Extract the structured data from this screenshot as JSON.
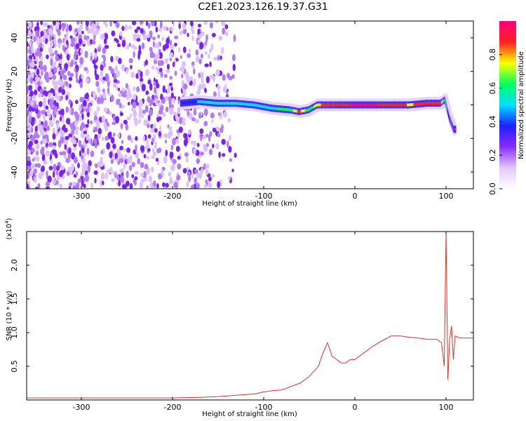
{
  "title": "C2E1.2023.126.19.37.G31",
  "colors": {
    "snr_line": "#e8302a",
    "frame": "#000000",
    "spectrogram_low": "#7a2cf0",
    "colorbar": [
      "#ffffff",
      "#e4c8ff",
      "#8a2bff",
      "#2020ff",
      "#00e0ff",
      "#00ff60",
      "#ffff00",
      "#ff2020",
      "#ff0080"
    ]
  },
  "chart_data": [
    {
      "type": "heatmap",
      "title": "C2E1.2023.126.19.37.G31",
      "xlabel": "Height of straight line (km)",
      "ylabel": "Frequency (Hz)",
      "xlim": [
        -360,
        130
      ],
      "ylim": [
        -50,
        50
      ],
      "x_ticks": [
        "-300",
        "-200",
        "-100",
        "0",
        "100"
      ],
      "x_tick_values": [
        -300,
        -200,
        -100,
        0,
        100
      ],
      "y_ticks": [
        "-40",
        "-20",
        "0",
        "20",
        "40"
      ],
      "y_tick_values": [
        -40,
        -20,
        0,
        20,
        40
      ],
      "grid": false,
      "colorbar": {
        "label": "Normalized spectral amplitude",
        "range": [
          0,
          1
        ],
        "ticks": [
          "0.0",
          "0.2",
          "0.4",
          "0.6",
          "0.8"
        ],
        "tick_values": [
          0.0,
          0.2,
          0.4,
          0.6,
          0.8
        ]
      },
      "signal_track": {
        "x": [
          -190,
          -170,
          -150,
          -130,
          -110,
          -90,
          -70,
          -60,
          -50,
          -40,
          -30,
          -20,
          0,
          20,
          40,
          60,
          80,
          95,
          100,
          105,
          110
        ],
        "freq_hz": [
          1,
          2,
          1,
          1,
          0,
          -2,
          -3,
          -4,
          -3,
          0,
          0,
          0,
          0,
          0,
          0,
          0,
          1,
          1,
          3,
          -8,
          -15
        ],
        "peak_amplitude": [
          0.35,
          0.45,
          0.5,
          0.55,
          0.55,
          0.55,
          0.6,
          0.85,
          0.6,
          0.75,
          0.9,
          0.9,
          0.95,
          0.95,
          0.9,
          0.8,
          0.85,
          0.85,
          0.6,
          0.3,
          0.2
        ]
      }
    },
    {
      "type": "line",
      "xlabel": "Height of straight line (km)",
      "ylabel": "SNR (10 * v/v)",
      "y_multiplier": "(x10",
      "y_multiplier_exp": "4",
      "y_multiplier_close": ")",
      "xlim": [
        -360,
        130
      ],
      "ylim": [
        0,
        2.5
      ],
      "x_ticks": [
        "-300",
        "-200",
        "-100",
        "0",
        "100"
      ],
      "x_tick_values": [
        -300,
        -200,
        -100,
        0,
        100
      ],
      "y_ticks": [
        "0.5",
        "1.0",
        "1.5",
        "2.0"
      ],
      "y_tick_values": [
        0.5,
        1.0,
        1.5,
        2.0
      ],
      "grid": false,
      "series": [
        {
          "color": "#e8302a",
          "x": [
            -360,
            -300,
            -250,
            -200,
            -170,
            -150,
            -130,
            -110,
            -100,
            -90,
            -80,
            -70,
            -60,
            -50,
            -40,
            -35,
            -30,
            -25,
            -20,
            -15,
            -10,
            -5,
            0,
            10,
            20,
            30,
            40,
            50,
            60,
            70,
            80,
            90,
            95,
            98,
            100,
            102,
            104,
            106,
            108,
            110,
            115,
            120,
            130
          ],
          "y": [
            0.03,
            0.03,
            0.03,
            0.03,
            0.04,
            0.05,
            0.07,
            0.09,
            0.12,
            0.14,
            0.15,
            0.2,
            0.25,
            0.35,
            0.5,
            0.7,
            0.85,
            0.65,
            0.6,
            0.55,
            0.55,
            0.6,
            0.6,
            0.7,
            0.8,
            0.88,
            0.95,
            0.95,
            0.93,
            0.92,
            0.9,
            0.9,
            0.85,
            0.5,
            2.5,
            0.3,
            0.9,
            1.1,
            0.6,
            0.95,
            0.92,
            0.92,
            0.92
          ]
        }
      ]
    }
  ]
}
